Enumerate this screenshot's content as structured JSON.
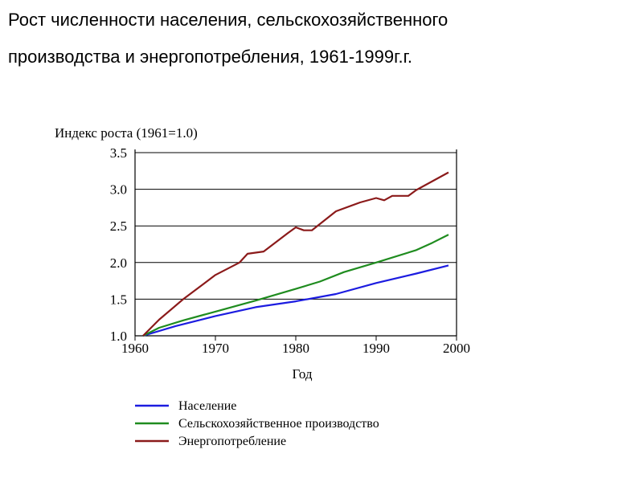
{
  "page": {
    "title_line1": "Рост численности населения, сельскохозяйственного",
    "title_line2": "производства и энергопотребления, 1961-1999г.г."
  },
  "chart_data": {
    "type": "line",
    "ylabel": "Индекс роста (1961=1.0)",
    "xlabel": "Год",
    "xlim": [
      1960,
      2000
    ],
    "ylim": [
      1.0,
      3.5
    ],
    "xticks": [
      1960,
      1970,
      1980,
      1990,
      2000
    ],
    "yticks": [
      1.0,
      1.5,
      2.0,
      2.5,
      3.0,
      3.5
    ],
    "ytick_labels": [
      "1.0",
      "1.5",
      "2.0",
      "2.5",
      "3.0",
      "3.5"
    ],
    "grid": "horizontal",
    "legend_position": "bottom",
    "series": [
      {
        "name": "Население",
        "color": "#1c1ce0",
        "x": [
          1961,
          1965,
          1970,
          1975,
          1980,
          1985,
          1990,
          1995,
          1999
        ],
        "y": [
          1.0,
          1.13,
          1.27,
          1.39,
          1.47,
          1.57,
          1.72,
          1.85,
          1.96
        ]
      },
      {
        "name": "Сельскохозяйственное производство",
        "color": "#1f8c1f",
        "x": [
          1961,
          1963,
          1966,
          1970,
          1975,
          1980,
          1983,
          1986,
          1990,
          1995,
          1997,
          1999
        ],
        "y": [
          1.0,
          1.11,
          1.21,
          1.33,
          1.48,
          1.64,
          1.74,
          1.87,
          2.0,
          2.17,
          2.27,
          2.38
        ]
      },
      {
        "name": "Энергопотребление",
        "color": "#8b1a1a",
        "x": [
          1961,
          1963,
          1966,
          1970,
          1973,
          1974,
          1976,
          1979,
          1980,
          1981,
          1982,
          1985,
          1988,
          1990,
          1991,
          1992,
          1994,
          1995,
          1999
        ],
        "y": [
          1.0,
          1.22,
          1.5,
          1.83,
          2.0,
          2.12,
          2.15,
          2.4,
          2.48,
          2.44,
          2.44,
          2.7,
          2.82,
          2.88,
          2.85,
          2.91,
          2.91,
          2.99,
          3.23
        ]
      }
    ]
  }
}
